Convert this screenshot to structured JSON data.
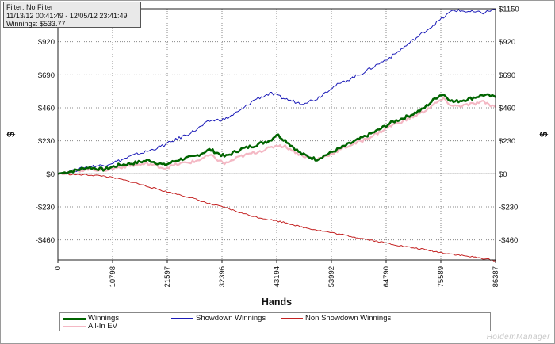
{
  "filter_box": {
    "line1": "Filter: No Filter",
    "line2": "11/13/12 00:41:49 - 12/05/12 23:41:49",
    "line3": "Winnings: $533.77"
  },
  "watermark": "HoldemManager",
  "chart_data": {
    "type": "line",
    "title": "",
    "xlabel": "Hands",
    "ylabel": "$",
    "xlim": [
      0,
      86387
    ],
    "ylim": [
      -600,
      1150
    ],
    "x_ticks": [
      0,
      10798,
      21597,
      32396,
      43194,
      53992,
      64790,
      75589,
      86387
    ],
    "y_ticks": [
      -460,
      -230,
      0,
      230,
      460,
      690,
      920,
      1150
    ],
    "y_tick_labels": [
      "-$460",
      "-$230",
      "$0",
      "$230",
      "$460",
      "$690",
      "$920",
      "$1150"
    ],
    "grid": true,
    "legend_position": "bottom",
    "series": [
      {
        "name": "Winnings",
        "color": "#006400",
        "x": [
          0,
          3000,
          6000,
          9000,
          12000,
          15000,
          18000,
          21000,
          24000,
          27000,
          30000,
          33000,
          36000,
          39000,
          42000,
          43194,
          45000,
          48000,
          51000,
          54000,
          57000,
          60000,
          63000,
          66000,
          69000,
          72000,
          75000,
          76000,
          78000,
          81000,
          84000,
          86387
        ],
        "y": [
          0,
          20,
          45,
          30,
          60,
          75,
          95,
          60,
          100,
          120,
          170,
          120,
          170,
          200,
          235,
          275,
          230,
          140,
          100,
          150,
          200,
          250,
          300,
          360,
          400,
          450,
          540,
          555,
          500,
          520,
          550,
          534
        ]
      },
      {
        "name": "Showdown Winnings",
        "color": "#1c1cb8",
        "x": [
          0,
          3000,
          6000,
          9000,
          12000,
          15000,
          18000,
          21000,
          24000,
          27000,
          30000,
          33000,
          36000,
          39000,
          42000,
          45000,
          48000,
          51000,
          54000,
          57000,
          60000,
          63000,
          66000,
          69000,
          72000,
          75000,
          78000,
          81000,
          84000,
          86387
        ],
        "y": [
          0,
          20,
          50,
          60,
          90,
          130,
          160,
          200,
          250,
          300,
          370,
          380,
          440,
          520,
          560,
          520,
          490,
          520,
          600,
          650,
          700,
          760,
          820,
          900,
          980,
          1060,
          1140,
          1130,
          1120,
          1150
        ]
      },
      {
        "name": "Non Showdown Winnings",
        "color": "#c42222",
        "x": [
          0,
          3000,
          6000,
          9000,
          12000,
          15000,
          18000,
          21000,
          24000,
          27000,
          30000,
          33000,
          36000,
          39000,
          42000,
          45000,
          48000,
          51000,
          54000,
          57000,
          60000,
          63000,
          66000,
          69000,
          72000,
          75000,
          78000,
          81000,
          84000,
          86387
        ],
        "y": [
          0,
          -5,
          -8,
          -15,
          -35,
          -60,
          -90,
          -120,
          -145,
          -175,
          -210,
          -235,
          -270,
          -300,
          -320,
          -340,
          -370,
          -390,
          -410,
          -430,
          -450,
          -470,
          -490,
          -510,
          -525,
          -545,
          -560,
          -575,
          -590,
          -605
        ]
      },
      {
        "name": "All-In EV",
        "color": "#f4b8c4",
        "x": [
          0,
          3000,
          6000,
          9000,
          12000,
          15000,
          18000,
          21000,
          24000,
          27000,
          30000,
          33000,
          36000,
          39000,
          42000,
          43194,
          45000,
          48000,
          51000,
          54000,
          57000,
          60000,
          63000,
          66000,
          69000,
          72000,
          75000,
          76000,
          78000,
          81000,
          84000,
          86387
        ],
        "y": [
          0,
          15,
          35,
          25,
          45,
          60,
          70,
          40,
          70,
          85,
          130,
          70,
          120,
          150,
          180,
          200,
          190,
          130,
          100,
          140,
          190,
          230,
          280,
          340,
          380,
          430,
          500,
          520,
          470,
          480,
          500,
          465
        ]
      }
    ]
  }
}
